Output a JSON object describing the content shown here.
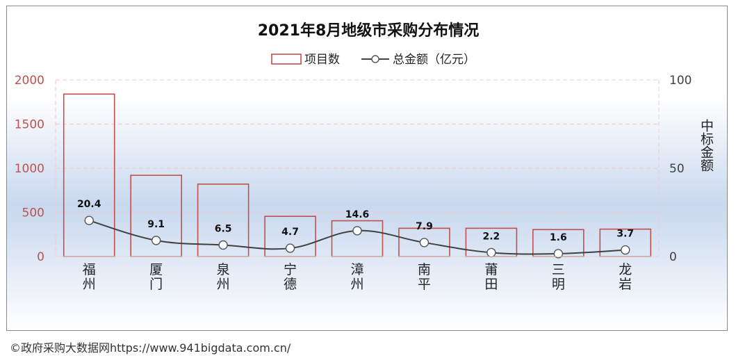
{
  "footer": "©政府采购大数据网https://www.941bigdata.com.cn/",
  "colors": {
    "bar_stroke": "#c0504d",
    "line": "#404040",
    "marker_fill": "#ffffff",
    "left_axis_text": "#c0504d",
    "right_axis_text": "#404040",
    "grid": "#f2c9c9",
    "bg_top": "#ffffff",
    "bg_mid": "#c8d8ee"
  },
  "chart_data": {
    "type": "bar",
    "title": "2021年8月地级市采购分布情况",
    "categories": [
      "福州",
      "厦门",
      "泉州",
      "宁德",
      "漳州",
      "南平",
      "莆田",
      "三明",
      "龙岩"
    ],
    "series": [
      {
        "name": "项目数",
        "type": "bar",
        "axis": "left",
        "values": [
          1840,
          920,
          820,
          455,
          405,
          320,
          320,
          305,
          310
        ]
      },
      {
        "name": "总金额（亿元）",
        "type": "line",
        "axis": "right",
        "smooth": true,
        "values": [
          20.4,
          9.1,
          6.5,
          4.7,
          14.6,
          7.9,
          2.2,
          1.6,
          3.7
        ],
        "labels": [
          "20.4",
          "9.1",
          "6.5",
          "4.7",
          "14.6",
          "7.9",
          "2.2",
          "1.6",
          "3.7"
        ]
      }
    ],
    "y_left": {
      "min": 0,
      "max": 2000,
      "ticks": [
        "0",
        "500",
        "1000",
        "1500",
        "2000"
      ]
    },
    "y_right": {
      "min": 0,
      "max": 100,
      "ticks": [
        "0",
        "50",
        "100"
      ],
      "label": "中标金额"
    },
    "legend": "top-center",
    "grid": true
  }
}
